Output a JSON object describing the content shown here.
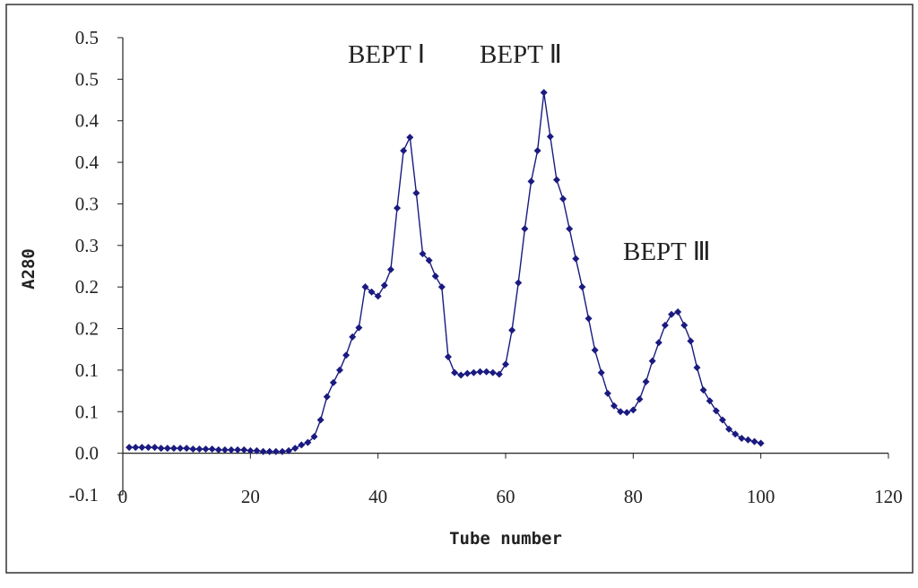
{
  "chart_data": {
    "type": "line",
    "x_label": "Tube number",
    "y_label": "A280",
    "annotations": [
      "BEPT Ⅰ",
      "BEPT Ⅱ",
      "BEPT Ⅲ"
    ],
    "x": [
      1,
      2,
      3,
      4,
      5,
      6,
      7,
      8,
      9,
      10,
      11,
      12,
      13,
      14,
      15,
      16,
      17,
      18,
      19,
      20,
      21,
      22,
      23,
      24,
      25,
      26,
      27,
      28,
      29,
      30,
      31,
      32,
      33,
      34,
      35,
      36,
      37,
      38,
      39,
      40,
      41,
      42,
      43,
      44,
      45,
      46,
      47,
      48,
      49,
      50,
      51,
      52,
      53,
      54,
      55,
      56,
      57,
      58,
      59,
      60,
      61,
      62,
      63,
      64,
      65,
      66,
      67,
      68,
      69,
      70,
      71,
      72,
      73,
      74,
      75,
      76,
      77,
      78,
      79,
      80,
      81,
      82,
      83,
      84,
      85,
      86,
      87,
      88,
      89,
      90,
      91,
      92,
      93,
      94,
      95,
      96,
      97,
      98,
      99,
      100
    ],
    "values": [
      0.007,
      0.007,
      0.007,
      0.007,
      0.007,
      0.006,
      0.006,
      0.006,
      0.006,
      0.006,
      0.005,
      0.005,
      0.005,
      0.005,
      0.004,
      0.004,
      0.004,
      0.004,
      0.004,
      0.003,
      0.003,
      0.002,
      0.002,
      0.002,
      0.002,
      0.003,
      0.006,
      0.01,
      0.013,
      0.02,
      0.04,
      0.068,
      0.085,
      0.1,
      0.118,
      0.14,
      0.151,
      0.2,
      0.194,
      0.189,
      0.202,
      0.221,
      0.295,
      0.364,
      0.38,
      0.313,
      0.24,
      0.232,
      0.213,
      0.2,
      0.116,
      0.097,
      0.094,
      0.096,
      0.097,
      0.098,
      0.098,
      0.097,
      0.095,
      0.107,
      0.148,
      0.205,
      0.27,
      0.327,
      0.364,
      0.434,
      0.381,
      0.329,
      0.306,
      0.27,
      0.234,
      0.2,
      0.162,
      0.124,
      0.097,
      0.072,
      0.057,
      0.05,
      0.049,
      0.052,
      0.065,
      0.086,
      0.111,
      0.133,
      0.154,
      0.167,
      0.17,
      0.154,
      0.135,
      0.103,
      0.076,
      0.063,
      0.051,
      0.04,
      0.029,
      0.023,
      0.018,
      0.016,
      0.014,
      0.012
    ],
    "color": "#1a1a80",
    "xlim": [
      0,
      120
    ],
    "xticks": [
      0,
      20,
      40,
      60,
      80,
      100,
      120
    ],
    "ylim": [
      -0.05,
      0.5
    ],
    "yticks": [
      {
        "value": -0.05,
        "label": "-0.1"
      },
      {
        "value": 0,
        "label": "0.0"
      },
      {
        "value": 0.05,
        "label": "0.1"
      },
      0.1,
      {
        "value": 0.15,
        "label": "0.2"
      },
      0.2,
      {
        "value": 0.25,
        "label": "0.3"
      },
      0.3,
      {
        "value": 0.35,
        "label": "0.4"
      },
      0.4,
      {
        "value": 0.45,
        "label": "0.5"
      },
      0.5
    ]
  }
}
